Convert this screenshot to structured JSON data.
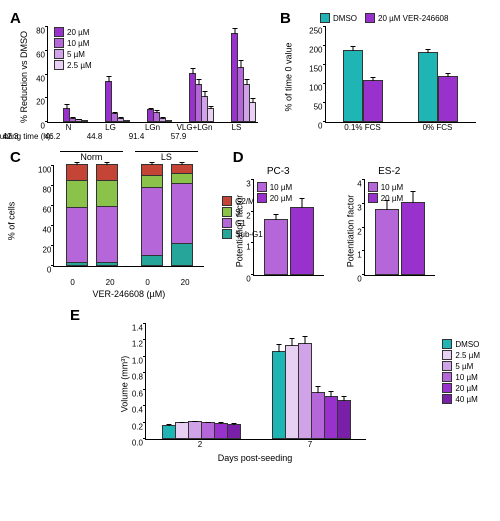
{
  "colors": {
    "c20": "#9932cc",
    "c10": "#b566d9",
    "c5": "#d0a3e8",
    "c2_5": "#e8d0f3",
    "c40": "#7a1fa8",
    "teal": "#1fb5b5",
    "g2m": "#c44536",
    "s": "#8bc34a",
    "g1": "#b566d9",
    "subg1": "#26a69a",
    "line": "#0066cc"
  },
  "A": {
    "label": "A",
    "ylabel": "% Reduction vs DMSO",
    "ymax": 80,
    "ystep": 20,
    "legend": [
      {
        "label": "20 µM",
        "color": "c20"
      },
      {
        "label": "10 µM",
        "color": "c10"
      },
      {
        "label": "5 µM",
        "color": "c5"
      },
      {
        "label": "2.5 µM",
        "color": "c2_5"
      }
    ],
    "doubling_label": "Doubling time (h):",
    "groups": [
      {
        "name": "N",
        "doubling": "42.3",
        "vals": [
          10,
          2,
          1,
          0
        ],
        "errs": [
          4,
          1,
          1,
          0
        ]
      },
      {
        "name": "LG",
        "doubling": "46.2",
        "vals": [
          33,
          6,
          2,
          0
        ],
        "errs": [
          5,
          2,
          1,
          0
        ]
      },
      {
        "name": "LGn",
        "doubling": "44.8",
        "vals": [
          9,
          7,
          2,
          0
        ],
        "errs": [
          2,
          2,
          1,
          0
        ]
      },
      {
        "name": "VLG+LGn",
        "doubling": "91.4",
        "vals": [
          40,
          30,
          20,
          10
        ],
        "errs": [
          5,
          5,
          5,
          3
        ]
      },
      {
        "name": "LS",
        "doubling": "57.9",
        "vals": [
          73,
          45,
          30,
          15
        ],
        "errs": [
          5,
          6,
          5,
          4
        ]
      }
    ]
  },
  "B": {
    "label": "B",
    "ylabel": "% of time 0 value",
    "ymax": 250,
    "ystep": 50,
    "legend": [
      {
        "label": "DMSO",
        "color": "teal"
      },
      {
        "label": "20 µM VER-246608",
        "color": "c20"
      }
    ],
    "groups": [
      {
        "name": "0.1% FCS",
        "vals": [
          185,
          105
        ],
        "errs": [
          12,
          10
        ],
        "colors": [
          "teal",
          "c20"
        ]
      },
      {
        "name": "0% FCS",
        "vals": [
          180,
          115
        ],
        "errs": [
          10,
          12
        ],
        "colors": [
          "teal",
          "c20"
        ]
      }
    ]
  },
  "C": {
    "label": "C",
    "ylabel": "% of cells",
    "ymax": 100,
    "ystep": 20,
    "xlabel": "VER-246608 (µM)",
    "legend": [
      {
        "label": "G2/M",
        "color": "g2m"
      },
      {
        "label": "S",
        "color": "s"
      },
      {
        "label": "G1",
        "color": "g1"
      },
      {
        "label": "Sub-G1",
        "color": "subg1"
      }
    ],
    "conditions": [
      {
        "name": "Norm",
        "bars": [
          {
            "x": "0",
            "segs": [
              {
                "c": "subg1",
                "v": 3
              },
              {
                "c": "g1",
                "v": 55
              },
              {
                "c": "s",
                "v": 27
              },
              {
                "c": "g2m",
                "v": 15
              }
            ]
          },
          {
            "x": "20",
            "segs": [
              {
                "c": "subg1",
                "v": 3
              },
              {
                "c": "g1",
                "v": 56
              },
              {
                "c": "s",
                "v": 26
              },
              {
                "c": "g2m",
                "v": 15
              }
            ]
          }
        ]
      },
      {
        "name": "LS",
        "bars": [
          {
            "x": "0",
            "segs": [
              {
                "c": "subg1",
                "v": 10
              },
              {
                "c": "g1",
                "v": 68
              },
              {
                "c": "s",
                "v": 12
              },
              {
                "c": "g2m",
                "v": 10
              }
            ]
          },
          {
            "x": "20",
            "segs": [
              {
                "c": "subg1",
                "v": 22
              },
              {
                "c": "g1",
                "v": 60
              },
              {
                "c": "s",
                "v": 10
              },
              {
                "c": "g2m",
                "v": 8
              }
            ]
          }
        ]
      }
    ]
  },
  "D": {
    "label": "D",
    "ylabel": "Potentiation factor",
    "charts": [
      {
        "title": "PC-3",
        "ymax": 3,
        "ystep": 1,
        "bars": [
          {
            "label": "10 µM",
            "val": 1.7,
            "err": 0.2,
            "color": "c10"
          },
          {
            "label": "20 µM",
            "val": 2.1,
            "err": 0.3,
            "color": "c20"
          }
        ]
      },
      {
        "title": "ES-2",
        "ymax": 4,
        "ystep": 1,
        "bars": [
          {
            "label": "10 µM",
            "val": 2.7,
            "err": 0.4,
            "color": "c10"
          },
          {
            "label": "20 µM",
            "val": 3.0,
            "err": 0.5,
            "color": "c20"
          }
        ]
      }
    ]
  },
  "E": {
    "label": "E",
    "ylabel": "Volume (mm³)",
    "xlabel": "Days post-seeding",
    "ymax": 1.4,
    "ystep": 0.2,
    "legend": [
      {
        "label": "DMSO",
        "color": "teal"
      },
      {
        "label": "2.5 µM",
        "color": "c2_5"
      },
      {
        "label": "5 µM",
        "color": "c5"
      },
      {
        "label": "10 µM",
        "color": "c10"
      },
      {
        "label": "20 µM",
        "color": "c20"
      },
      {
        "label": "40 µM",
        "color": "c40"
      }
    ],
    "groups": [
      {
        "name": "2",
        "vals": [
          0.15,
          0.18,
          0.19,
          0.18,
          0.17,
          0.16
        ],
        "errs": [
          0.02,
          0.02,
          0.02,
          0.02,
          0.02,
          0.02
        ]
      },
      {
        "name": "7",
        "vals": [
          1.05,
          1.12,
          1.15,
          0.55,
          0.5,
          0.45
        ],
        "errs": [
          0.1,
          0.1,
          0.09,
          0.08,
          0.07,
          0.06
        ]
      }
    ]
  }
}
